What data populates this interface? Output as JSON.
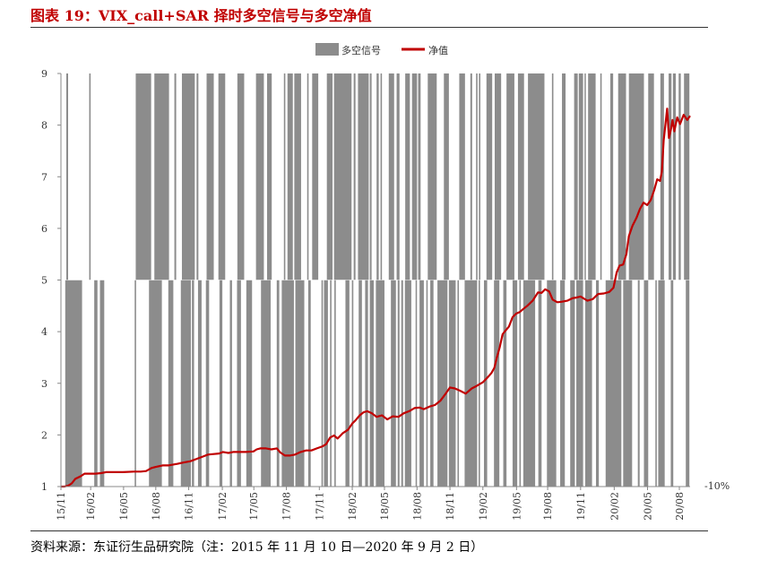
{
  "header": {
    "title": "图表 19：VIX_call+SAR 择时多空信号与多空净值"
  },
  "footer": {
    "source": "资料来源：东证衍生品研究院（注：2015 年 11 月 10 日—2020 年 9 月 2 日）"
  },
  "colors": {
    "signal": "#8c8c8c",
    "nav": "#c00000",
    "title": "#c00000"
  },
  "chart_data": {
    "type": "bar+line",
    "title": "",
    "legend": {
      "position": "top-center",
      "entries": [
        "多空信号",
        "净值"
      ]
    },
    "y_axis": {
      "range": [
        1,
        9
      ],
      "ticks": [
        "1",
        "2",
        "3",
        "4",
        "5",
        "6",
        "7",
        "8",
        "9"
      ],
      "baseline_label": "-10%"
    },
    "x_axis": {
      "range": [
        "2015-11-10",
        "2020-09-02"
      ],
      "ticks": [
        {
          "label": "15/11",
          "date": "2015-11-10"
        },
        {
          "label": "16/02",
          "date": "2016-02-01"
        },
        {
          "label": "16/05",
          "date": "2016-05-03"
        },
        {
          "label": "16/08",
          "date": "2016-08-01"
        },
        {
          "label": "16/11",
          "date": "2016-11-01"
        },
        {
          "label": "17/02",
          "date": "2017-02-03"
        },
        {
          "label": "17/05",
          "date": "2017-05-02"
        },
        {
          "label": "17/08",
          "date": "2017-08-01"
        },
        {
          "label": "17/11",
          "date": "2017-11-01"
        },
        {
          "label": "18/02",
          "date": "2018-02-01"
        },
        {
          "label": "18/05",
          "date": "2018-05-02"
        },
        {
          "label": "18/08",
          "date": "2018-08-01"
        },
        {
          "label": "18/11",
          "date": "2018-11-01"
        },
        {
          "label": "19/02",
          "date": "2019-02-01"
        },
        {
          "label": "19/05",
          "date": "2019-05-06"
        },
        {
          "label": "19/08",
          "date": "2019-08-01"
        },
        {
          "label": "19/11",
          "date": "2019-11-01"
        },
        {
          "label": "20/02",
          "date": "2020-02-03"
        },
        {
          "label": "20/05",
          "date": "2020-05-06"
        },
        {
          "label": "20/08",
          "date": "2020-08-03"
        }
      ]
    },
    "signal_series": {
      "name": "多空信号",
      "long_periods": [
        [
          "2015-11-25",
          "2015-11-30"
        ],
        [
          "2016-01-28",
          "2016-02-01"
        ],
        [
          "2016-06-06",
          "2016-07-19"
        ],
        [
          "2016-07-28",
          "2016-09-07"
        ],
        [
          "2016-09-22",
          "2016-09-27"
        ],
        [
          "2016-10-13",
          "2016-11-18"
        ],
        [
          "2016-11-23",
          "2016-11-28"
        ],
        [
          "2016-12-21",
          "2017-01-10"
        ],
        [
          "2017-01-23",
          "2017-02-11"
        ],
        [
          "2017-03-17",
          "2017-04-05"
        ],
        [
          "2017-05-08",
          "2017-05-30"
        ],
        [
          "2017-06-08",
          "2017-06-21"
        ],
        [
          "2017-07-25",
          "2017-07-29"
        ],
        [
          "2017-08-04",
          "2017-08-19"
        ],
        [
          "2017-08-23",
          "2017-09-11"
        ],
        [
          "2017-09-28",
          "2017-10-02"
        ],
        [
          "2017-10-12",
          "2017-10-29"
        ],
        [
          "2017-11-22",
          "2017-12-08"
        ],
        [
          "2017-12-12",
          "2018-01-30"
        ],
        [
          "2018-02-05",
          "2018-02-10"
        ],
        [
          "2018-02-17",
          "2018-03-19"
        ],
        [
          "2018-03-22",
          "2018-03-27"
        ],
        [
          "2018-04-10",
          "2018-04-16"
        ],
        [
          "2018-04-21",
          "2018-04-25"
        ],
        [
          "2018-05-14",
          "2018-05-29"
        ],
        [
          "2018-06-05",
          "2018-06-13"
        ],
        [
          "2018-06-29",
          "2018-07-12"
        ],
        [
          "2018-07-18",
          "2018-08-01"
        ],
        [
          "2018-08-04",
          "2018-08-11"
        ],
        [
          "2018-08-31",
          "2018-09-25"
        ],
        [
          "2018-10-15",
          "2018-10-29"
        ],
        [
          "2018-11-27",
          "2018-12-13"
        ],
        [
          "2018-12-28",
          "2019-01-02"
        ],
        [
          "2019-01-13",
          "2019-01-17"
        ],
        [
          "2019-01-21",
          "2019-01-25"
        ],
        [
          "2019-02-11",
          "2019-02-27"
        ],
        [
          "2019-03-06",
          "2019-03-24"
        ],
        [
          "2019-04-08",
          "2019-04-30"
        ],
        [
          "2019-05-10",
          "2019-05-27"
        ],
        [
          "2019-06-07",
          "2019-07-23"
        ],
        [
          "2019-08-13",
          "2019-08-17"
        ],
        [
          "2019-09-10",
          "2019-09-20"
        ],
        [
          "2019-10-14",
          "2019-10-24"
        ],
        [
          "2019-10-27",
          "2019-11-08"
        ],
        [
          "2019-11-12",
          "2019-11-15"
        ],
        [
          "2019-11-22",
          "2019-12-13"
        ],
        [
          "2019-12-26",
          "2019-12-30"
        ],
        [
          "2020-01-23",
          "2020-01-31"
        ],
        [
          "2020-02-14",
          "2020-03-07"
        ],
        [
          "2020-03-15",
          "2020-04-26"
        ],
        [
          "2020-05-08",
          "2020-05-24"
        ],
        [
          "2020-06-11",
          "2020-06-21"
        ],
        [
          "2020-07-04",
          "2020-07-12"
        ],
        [
          "2020-07-16",
          "2020-07-24"
        ],
        [
          "2020-08-01",
          "2020-08-07"
        ],
        [
          "2020-08-16",
          "2020-08-31"
        ]
      ],
      "short_periods": [
        [
          "2015-11-22",
          "2016-01-08"
        ],
        [
          "2016-02-11",
          "2016-02-20"
        ],
        [
          "2016-02-27",
          "2016-03-10"
        ],
        [
          "2016-06-03",
          "2016-06-07"
        ],
        [
          "2016-07-13",
          "2016-08-18"
        ],
        [
          "2016-09-05",
          "2016-09-19"
        ],
        [
          "2016-10-10",
          "2016-11-07"
        ],
        [
          "2016-11-10",
          "2016-11-16"
        ],
        [
          "2016-11-27",
          "2016-12-07"
        ],
        [
          "2016-12-19",
          "2016-12-28"
        ],
        [
          "2017-01-26",
          "2017-02-03"
        ],
        [
          "2017-02-24",
          "2017-03-02"
        ],
        [
          "2017-03-16",
          "2017-03-27"
        ],
        [
          "2017-04-11",
          "2017-04-27"
        ],
        [
          "2017-05-22",
          "2017-06-18"
        ],
        [
          "2017-07-05",
          "2017-07-12"
        ],
        [
          "2017-07-19",
          "2017-08-22"
        ],
        [
          "2017-08-26",
          "2017-09-20"
        ],
        [
          "2017-10-01",
          "2017-10-08"
        ],
        [
          "2017-11-07",
          "2017-11-11"
        ],
        [
          "2017-11-14",
          "2017-11-25"
        ],
        [
          "2017-12-01",
          "2017-12-05"
        ],
        [
          "2017-12-13",
          "2017-12-17"
        ],
        [
          "2018-01-13",
          "2018-01-24"
        ],
        [
          "2018-01-31",
          "2018-02-04"
        ],
        [
          "2018-02-19",
          "2018-02-28"
        ],
        [
          "2018-03-09",
          "2018-03-17"
        ],
        [
          "2018-03-22",
          "2018-04-02"
        ],
        [
          "2018-04-08",
          "2018-05-02"
        ],
        [
          "2018-05-20",
          "2018-06-03"
        ],
        [
          "2018-06-08",
          "2018-06-13"
        ],
        [
          "2018-06-18",
          "2018-06-23"
        ],
        [
          "2018-06-28",
          "2018-07-16"
        ],
        [
          "2018-07-28",
          "2018-07-31"
        ],
        [
          "2018-08-08",
          "2018-08-20"
        ],
        [
          "2018-08-27",
          "2018-08-30"
        ],
        [
          "2018-09-07",
          "2018-09-16"
        ],
        [
          "2018-09-27",
          "2018-10-25"
        ],
        [
          "2018-10-29",
          "2018-11-17"
        ],
        [
          "2018-11-22",
          "2018-11-26"
        ],
        [
          "2018-12-12",
          "2019-01-16"
        ],
        [
          "2019-01-20",
          "2019-01-24"
        ],
        [
          "2019-02-04",
          "2019-02-13"
        ],
        [
          "2019-03-04",
          "2019-03-19"
        ],
        [
          "2019-03-30",
          "2019-04-08"
        ],
        [
          "2019-04-25",
          "2019-05-08"
        ],
        [
          "2019-05-14",
          "2019-05-18"
        ],
        [
          "2019-05-25",
          "2019-06-27"
        ],
        [
          "2019-07-06",
          "2019-07-15"
        ],
        [
          "2019-07-30",
          "2019-08-25"
        ],
        [
          "2019-09-05",
          "2019-09-18"
        ],
        [
          "2019-10-03",
          "2019-10-16"
        ],
        [
          "2019-10-20",
          "2019-11-08"
        ],
        [
          "2019-11-14",
          "2019-12-03"
        ],
        [
          "2019-12-14",
          "2019-12-22"
        ],
        [
          "2020-01-10",
          "2020-02-23"
        ],
        [
          "2020-02-28",
          "2020-03-24"
        ],
        [
          "2020-04-09",
          "2020-04-14"
        ],
        [
          "2020-04-26",
          "2020-05-08"
        ],
        [
          "2020-05-28",
          "2020-06-01"
        ],
        [
          "2020-06-05",
          "2020-06-23"
        ],
        [
          "2020-07-10",
          "2020-07-17"
        ],
        [
          "2020-08-21",
          "2020-08-31"
        ]
      ]
    },
    "nav_series": {
      "name": "净值",
      "points": [
        [
          "2015-11-10",
          1.0
        ],
        [
          "2015-11-20",
          1.0
        ],
        [
          "2015-12-01",
          1.02
        ],
        [
          "2015-12-10",
          1.06
        ],
        [
          "2015-12-20",
          1.15
        ],
        [
          "2016-01-04",
          1.2
        ],
        [
          "2016-01-15",
          1.25
        ],
        [
          "2016-02-01",
          1.25
        ],
        [
          "2016-02-15",
          1.25
        ],
        [
          "2016-03-01",
          1.26
        ],
        [
          "2016-03-15",
          1.28
        ],
        [
          "2016-04-01",
          1.28
        ],
        [
          "2016-05-01",
          1.28
        ],
        [
          "2016-06-01",
          1.29
        ],
        [
          "2016-06-20",
          1.29
        ],
        [
          "2016-07-05",
          1.3
        ],
        [
          "2016-07-20",
          1.36
        ],
        [
          "2016-08-01",
          1.38
        ],
        [
          "2016-08-20",
          1.41
        ],
        [
          "2016-09-05",
          1.41
        ],
        [
          "2016-10-01",
          1.44
        ],
        [
          "2016-10-20",
          1.47
        ],
        [
          "2016-11-05",
          1.49
        ],
        [
          "2016-11-25",
          1.54
        ],
        [
          "2016-12-10",
          1.58
        ],
        [
          "2016-12-25",
          1.62
        ],
        [
          "2017-01-10",
          1.63
        ],
        [
          "2017-01-25",
          1.64
        ],
        [
          "2017-02-05",
          1.67
        ],
        [
          "2017-02-20",
          1.65
        ],
        [
          "2017-03-05",
          1.67
        ],
        [
          "2017-03-20",
          1.67
        ],
        [
          "2017-04-10",
          1.67
        ],
        [
          "2017-05-01",
          1.68
        ],
        [
          "2017-05-10",
          1.72
        ],
        [
          "2017-05-20",
          1.74
        ],
        [
          "2017-06-05",
          1.74
        ],
        [
          "2017-06-20",
          1.72
        ],
        [
          "2017-07-05",
          1.74
        ],
        [
          "2017-07-15",
          1.66
        ],
        [
          "2017-07-28",
          1.6
        ],
        [
          "2017-08-10",
          1.6
        ],
        [
          "2017-08-25",
          1.62
        ],
        [
          "2017-09-10",
          1.67
        ],
        [
          "2017-09-25",
          1.7
        ],
        [
          "2017-10-10",
          1.7
        ],
        [
          "2017-10-25",
          1.74
        ],
        [
          "2017-11-10",
          1.78
        ],
        [
          "2017-11-20",
          1.82
        ],
        [
          "2017-12-01",
          1.95
        ],
        [
          "2017-12-12",
          1.99
        ],
        [
          "2017-12-22",
          1.93
        ],
        [
          "2018-01-05",
          2.03
        ],
        [
          "2018-01-20",
          2.1
        ],
        [
          "2018-02-01",
          2.22
        ],
        [
          "2018-02-10",
          2.28
        ],
        [
          "2018-02-22",
          2.38
        ],
        [
          "2018-03-05",
          2.44
        ],
        [
          "2018-03-15",
          2.46
        ],
        [
          "2018-03-28",
          2.42
        ],
        [
          "2018-04-10",
          2.35
        ],
        [
          "2018-04-25",
          2.38
        ],
        [
          "2018-05-10",
          2.3
        ],
        [
          "2018-05-25",
          2.36
        ],
        [
          "2018-06-10",
          2.35
        ],
        [
          "2018-06-25",
          2.42
        ],
        [
          "2018-07-10",
          2.46
        ],
        [
          "2018-07-25",
          2.52
        ],
        [
          "2018-08-08",
          2.53
        ],
        [
          "2018-08-20",
          2.5
        ],
        [
          "2018-09-05",
          2.55
        ],
        [
          "2018-09-20",
          2.58
        ],
        [
          "2018-10-05",
          2.66
        ],
        [
          "2018-10-20",
          2.8
        ],
        [
          "2018-11-01",
          2.92
        ],
        [
          "2018-11-15",
          2.9
        ],
        [
          "2018-12-01",
          2.85
        ],
        [
          "2018-12-15",
          2.8
        ],
        [
          "2019-01-01",
          2.9
        ],
        [
          "2019-01-15",
          2.95
        ],
        [
          "2019-02-01",
          3.02
        ],
        [
          "2019-02-15",
          3.12
        ],
        [
          "2019-02-25",
          3.2
        ],
        [
          "2019-03-05",
          3.3
        ],
        [
          "2019-03-12",
          3.5
        ],
        [
          "2019-03-20",
          3.7
        ],
        [
          "2019-03-28",
          3.95
        ],
        [
          "2019-04-05",
          4.02
        ],
        [
          "2019-04-15",
          4.1
        ],
        [
          "2019-04-25",
          4.28
        ],
        [
          "2019-05-05",
          4.35
        ],
        [
          "2019-05-15",
          4.38
        ],
        [
          "2019-05-25",
          4.44
        ],
        [
          "2019-06-05",
          4.5
        ],
        [
          "2019-06-20",
          4.6
        ],
        [
          "2019-07-05",
          4.76
        ],
        [
          "2019-07-15",
          4.75
        ],
        [
          "2019-07-25",
          4.82
        ],
        [
          "2019-08-05",
          4.78
        ],
        [
          "2019-08-15",
          4.62
        ],
        [
          "2019-08-28",
          4.57
        ],
        [
          "2019-09-10",
          4.58
        ],
        [
          "2019-09-25",
          4.6
        ],
        [
          "2019-10-10",
          4.65
        ],
        [
          "2019-10-20",
          4.66
        ],
        [
          "2019-11-01",
          4.68
        ],
        [
          "2019-11-20",
          4.6
        ],
        [
          "2019-12-05",
          4.63
        ],
        [
          "2019-12-20",
          4.73
        ],
        [
          "2020-01-05",
          4.74
        ],
        [
          "2020-01-20",
          4.77
        ],
        [
          "2020-02-01",
          4.85
        ],
        [
          "2020-02-10",
          5.15
        ],
        [
          "2020-02-18",
          5.28
        ],
        [
          "2020-02-28",
          5.3
        ],
        [
          "2020-03-08",
          5.5
        ],
        [
          "2020-03-15",
          5.85
        ],
        [
          "2020-03-25",
          6.05
        ],
        [
          "2020-04-05",
          6.2
        ],
        [
          "2020-04-15",
          6.38
        ],
        [
          "2020-04-25",
          6.5
        ],
        [
          "2020-05-05",
          6.45
        ],
        [
          "2020-05-15",
          6.55
        ],
        [
          "2020-05-25",
          6.75
        ],
        [
          "2020-06-02",
          6.95
        ],
        [
          "2020-06-10",
          6.92
        ],
        [
          "2020-06-15",
          7.1
        ],
        [
          "2020-06-20",
          7.7
        ],
        [
          "2020-06-25",
          8.0
        ],
        [
          "2020-06-30",
          8.32
        ],
        [
          "2020-07-05",
          7.75
        ],
        [
          "2020-07-10",
          7.9
        ],
        [
          "2020-07-15",
          8.1
        ],
        [
          "2020-07-20",
          7.88
        ],
        [
          "2020-07-28",
          8.15
        ],
        [
          "2020-08-05",
          8.02
        ],
        [
          "2020-08-15",
          8.2
        ],
        [
          "2020-08-25",
          8.1
        ],
        [
          "2020-09-02",
          8.18
        ]
      ]
    }
  }
}
